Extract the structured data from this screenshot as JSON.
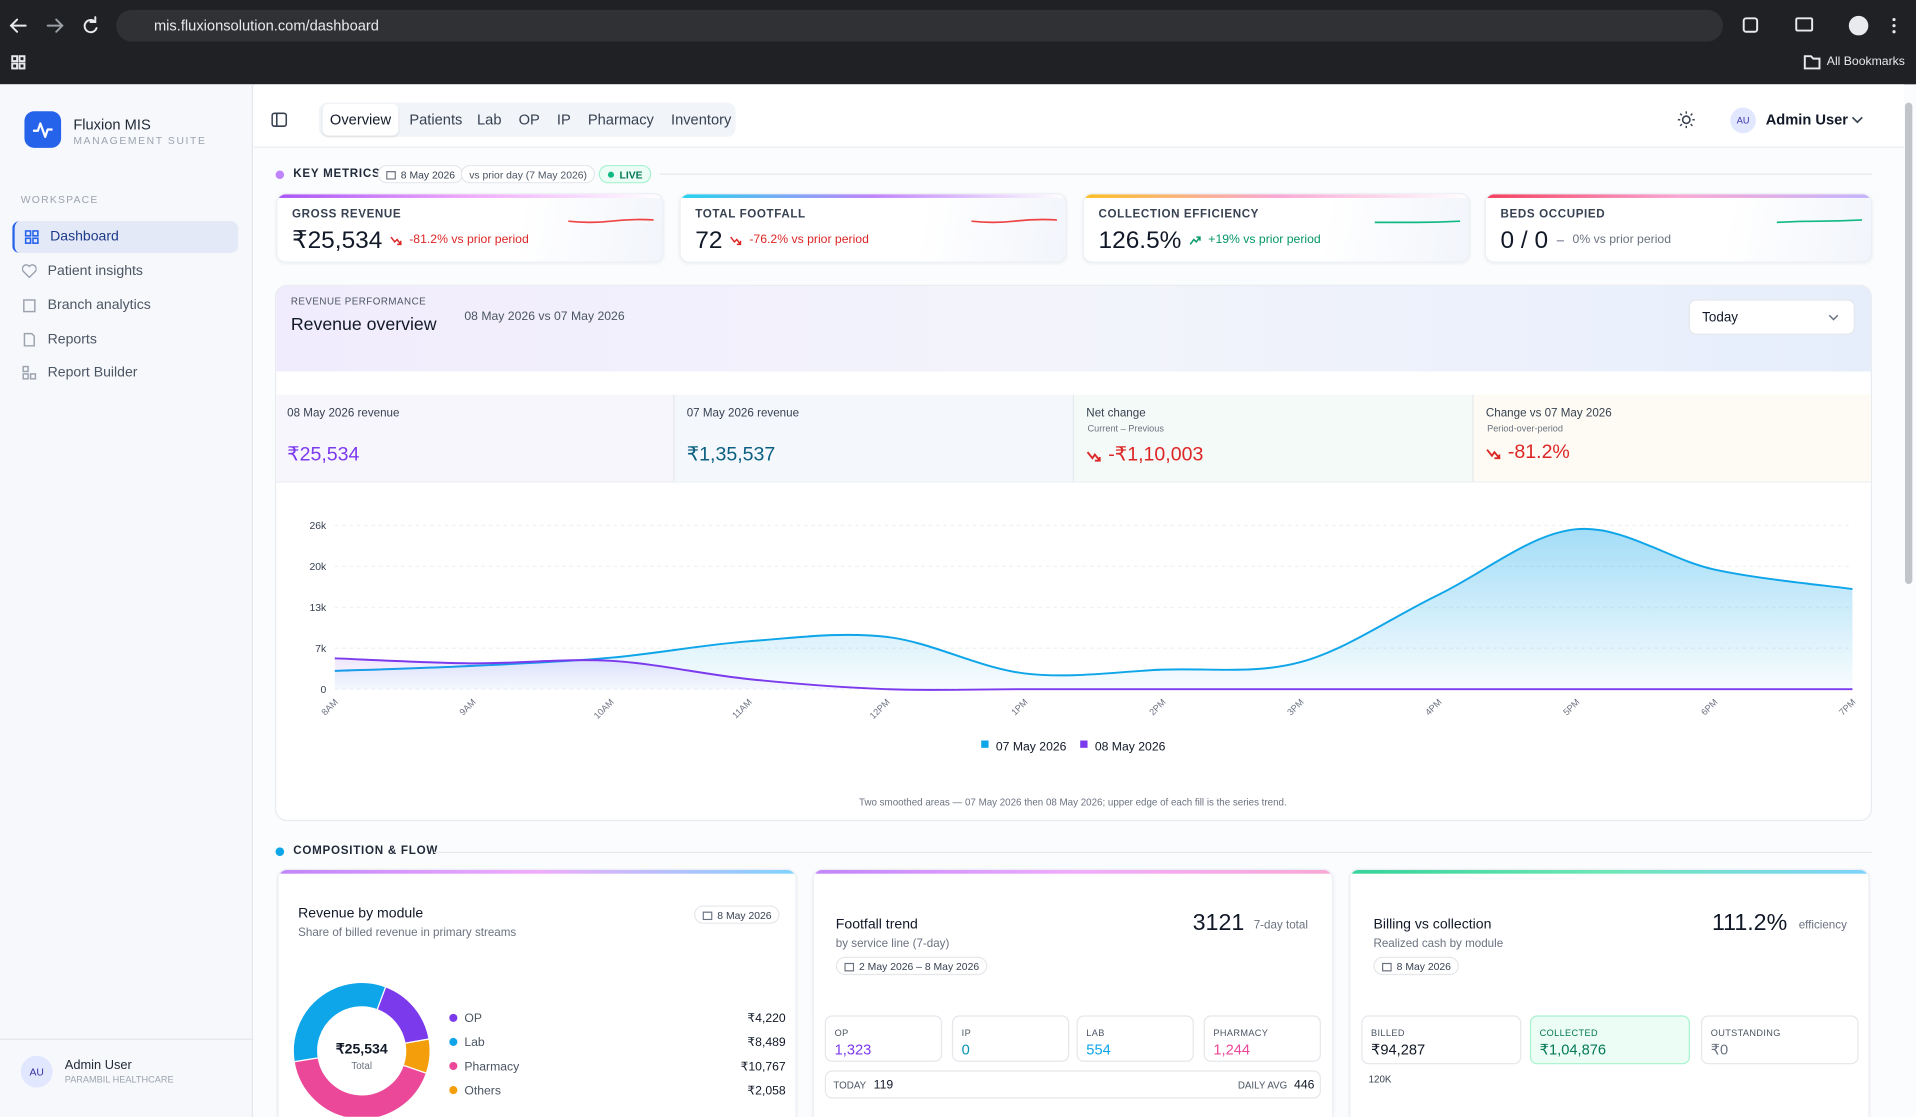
{
  "browser": {
    "url": "mis.fluxionsolution.com/dashboard",
    "bookmarks": "All Bookmarks"
  },
  "sidebar": {
    "brand": "Fluxion MIS",
    "tagline": "MANAGEMENT SUITE",
    "section": "WORKSPACE",
    "nav": [
      "Dashboard",
      "Patient insights",
      "Branch analytics",
      "Reports",
      "Report Builder"
    ],
    "user": {
      "initials": "AU",
      "name": "Admin User",
      "org": "PARAMBIL HEALTHCARE"
    }
  },
  "header": {
    "tabs": [
      "Overview",
      "Patients",
      "Lab",
      "OP",
      "IP",
      "Pharmacy",
      "Inventory"
    ],
    "user": {
      "initials": "AU",
      "name": "Admin User"
    }
  },
  "key_metrics": {
    "title": "KEY METRICS",
    "date": "8 May 2026",
    "compare": "vs prior day (7 May 2026)",
    "status": "LIVE",
    "cards": [
      {
        "label": "GROSS REVENUE",
        "value": "₹25,534",
        "delta": "-81.2% vs prior period"
      },
      {
        "label": "TOTAL FOOTFALL",
        "value": "72",
        "delta": "-76.2% vs prior period"
      },
      {
        "label": "COLLECTION EFFICIENCY",
        "value": "126.5%",
        "delta": "+19% vs prior period"
      },
      {
        "label": "BEDS OCCUPIED",
        "value": "0 / 0",
        "delta": "0% vs prior period"
      }
    ]
  },
  "revenue_overview": {
    "eyebrow": "REVENUE PERFORMANCE",
    "title": "Revenue overview",
    "period": "08 May 2026 vs 07 May 2026",
    "range": "Today",
    "stats": [
      {
        "label": "08 May 2026 revenue",
        "value": "₹25,534"
      },
      {
        "label": "07 May 2026 revenue",
        "value": "₹1,35,537"
      },
      {
        "label": "Net change",
        "sub": "Current – Previous",
        "value": "-₹1,10,003"
      },
      {
        "label": "Change vs 07 May 2026",
        "sub": "Period-over-period",
        "value": "-81.2%"
      }
    ]
  },
  "composition": {
    "title": "COMPOSITION & FLOW",
    "footfall": {
      "title": "Footfall trend",
      "subtitle": "by service line (7-day)",
      "date": "2 May 2026 – 8 May 2026",
      "total": "3121",
      "total_label": "7-day total",
      "tiles": [
        {
          "label": "OP",
          "value": "1,323"
        },
        {
          "label": "IP",
          "value": "0"
        },
        {
          "label": "LAB",
          "value": "554"
        },
        {
          "label": "PHARMACY",
          "value": "1,244"
        }
      ],
      "today_label": "TODAY",
      "today": "119",
      "avg_label": "DAILY AVG",
      "avg": "446"
    },
    "billing": {
      "title": "Billing vs collection",
      "subtitle": "Realized cash by module",
      "date": "8 May 2026",
      "efficiency": "111.2%",
      "efficiency_label": "efficiency",
      "tiles": [
        {
          "label": "BILLED",
          "value": "₹94,287"
        },
        {
          "label": "COLLECTED",
          "value": "₹1,04,876"
        },
        {
          "label": "OUTSTANDING",
          "value": "₹0"
        }
      ],
      "axis_top": "120K"
    }
  },
  "chart_data": [
    {
      "type": "area",
      "caption": "Two smoothed areas — 07 May 2026 then 08 May 2026; upper edge of each fill is the series trend.",
      "categories": [
        "8AM",
        "9AM",
        "10AM",
        "11AM",
        "12PM",
        "1PM",
        "2PM",
        "3PM",
        "4PM",
        "5PM",
        "6PM",
        "7PM"
      ],
      "series": [
        {
          "name": "07 May 2026",
          "color": "#0ea5e9",
          "values": [
            2900,
            3700,
            5000,
            7600,
            8300,
            2500,
            3100,
            4300,
            15000,
            25400,
            19000,
            15900
          ]
        },
        {
          "name": "08 May 2026",
          "color": "#7c3aed",
          "values": [
            4900,
            4100,
            4500,
            1600,
            0,
            0,
            0,
            0,
            0,
            0,
            0,
            0
          ]
        }
      ],
      "ylim": [
        0,
        26000
      ],
      "yticks": [
        0,
        {
          "value": 6500,
          "label": "7k"
        },
        {
          "value": 13000,
          "label": "13k"
        },
        {
          "value": 19500,
          "label": "20k"
        },
        {
          "value": 26000,
          "label": "26k"
        }
      ],
      "grid": true
    },
    {
      "type": "donut",
      "title": "Revenue by module",
      "subtitle": "Share of billed revenue in primary streams",
      "date": "8 May 2026",
      "categories": [
        "OP",
        "Lab",
        "Pharmacy",
        "Others"
      ],
      "values": [
        4220,
        8489,
        10767,
        2058
      ],
      "value_labels": [
        "₹4,220",
        "₹8,489",
        "₹10,767",
        "₹2,058"
      ],
      "colors": [
        "#7c3aed",
        "#0ea5e9",
        "#ec4899",
        "#f59e0b"
      ],
      "center_label": "₹25,534",
      "center_sublabel": "Total"
    }
  ]
}
